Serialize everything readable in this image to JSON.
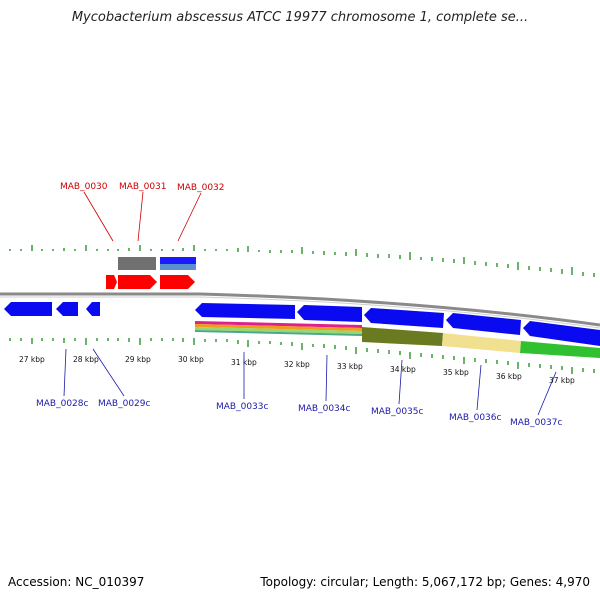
{
  "title": "Mycobacterium abscessus ATCC 19977 chromosome 1, complete se...",
  "footer": {
    "accession": "Accession: NC_010397",
    "stats": "Topology: circular; Length: 5,067,172 bp; Genes: 4,970"
  },
  "colors": {
    "forward_label": "#cc0000",
    "reverse_label": "#1a1aaa",
    "forward_gene": "#ff0000",
    "reverse_gene": "#0000ee",
    "ticks": "#1a8a1a",
    "backbone": "#888888"
  },
  "position_ticks": [
    "27 kbp",
    "28 kbp",
    "29 kbp",
    "30 kbp",
    "31 kbp",
    "32 kbp",
    "33 kbp",
    "34 kbp",
    "35 kbp",
    "36 kbp",
    "37 kbp"
  ],
  "forward_gene_labels": [
    "MAB_0030",
    "MAB_0031",
    "MAB_0032"
  ],
  "reverse_gene_labels": [
    "MAB_0028c",
    "MAB_0029c",
    "MAB_0033c",
    "MAB_0034c",
    "MAB_0035c",
    "MAB_0036c",
    "MAB_0037c"
  ]
}
